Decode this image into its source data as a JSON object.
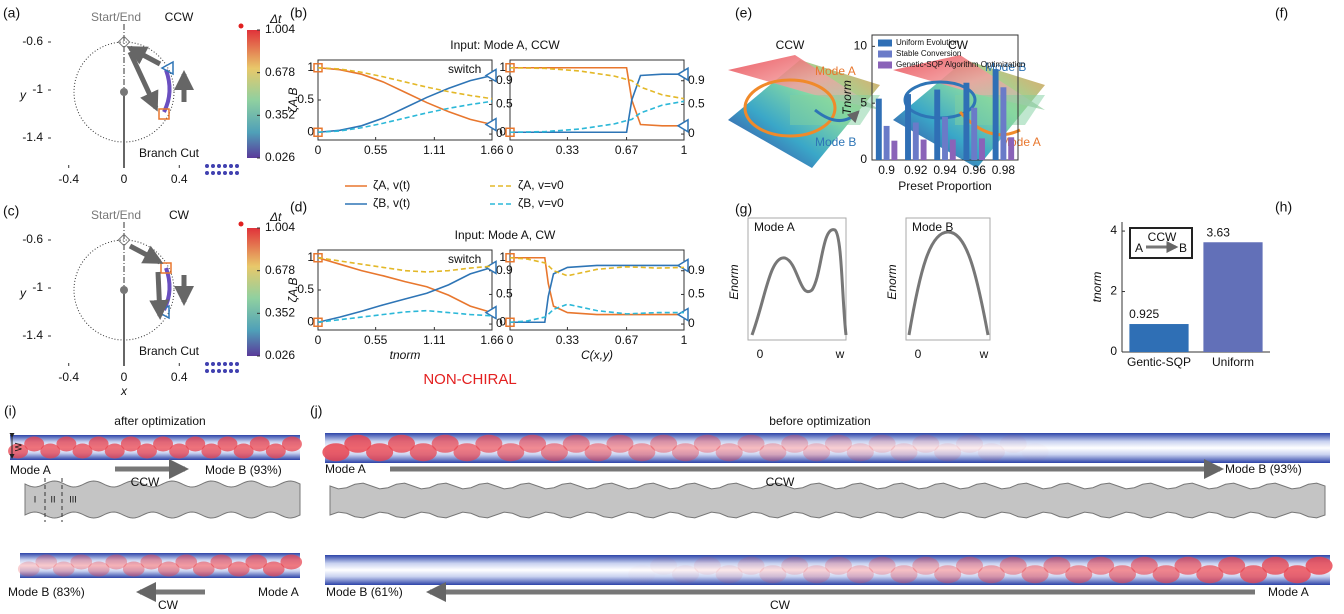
{
  "chart_data": [
    {
      "type": "trajectory",
      "label": "(a)",
      "start_label": "Start/End",
      "direction": "CCW",
      "cut_label": "Branch Cut",
      "ylabel": "y",
      "xlim": [
        -0.55,
        0.55
      ],
      "ylim": [
        -1.65,
        -0.45
      ],
      "xticks": [
        -0.4,
        0,
        0.4
      ],
      "yticks": [
        -0.6,
        -1,
        -1.4
      ],
      "colorbar": {
        "label": "Δt",
        "lim": [
          0.026,
          1.004
        ],
        "ticks": [
          1.004,
          0.678,
          0.352,
          0.026
        ]
      }
    },
    {
      "type": "trajectory",
      "label": "(c)",
      "start_label": "Start/End",
      "direction": "CW",
      "cut_label": "Branch Cut",
      "ylabel": "y",
      "xlabel": "x",
      "xlim": [
        -0.55,
        0.55
      ],
      "ylim": [
        -1.65,
        -0.45
      ],
      "xticks": [
        -0.4,
        0,
        0.4
      ],
      "yticks": [
        -0.6,
        -1,
        -1.4
      ],
      "colorbar": {
        "label": "Δt",
        "lim": [
          0.026,
          1.004
        ],
        "ticks": [
          1.004,
          0.678,
          0.352,
          0.026
        ]
      }
    },
    {
      "type": "line",
      "label": "(b)",
      "title": "Input: Mode A, CCW",
      "annotation": "switch",
      "ylabel": "ζA,B",
      "x": [
        0,
        0.2075,
        0.415,
        0.6225,
        0.83,
        1.0375,
        1.245,
        1.4525,
        1.66
      ],
      "xlim": [
        0,
        1.66
      ],
      "xticks": [
        0,
        0.55,
        1.11,
        1.66
      ],
      "ylim": [
        -0.12,
        1.12
      ],
      "yticks": [
        0,
        0.5,
        1
      ],
      "y2lim": [
        -0.1,
        1.25
      ],
      "y2ticks": [
        0,
        0.5,
        0.9
      ],
      "series": [
        {
          "name": "ζA, v(t)",
          "color": "#e8772e",
          "style": "solid",
          "values": [
            1,
            0.97,
            0.9,
            0.78,
            0.62,
            0.46,
            0.32,
            0.2,
            0.12
          ]
        },
        {
          "name": "ζB, v(t)",
          "color": "#2e75b6",
          "style": "solid",
          "values": [
            0,
            0.03,
            0.1,
            0.22,
            0.38,
            0.54,
            0.68,
            0.8,
            0.88
          ]
        },
        {
          "name": "ζA, v=v0",
          "color": "#e3b828",
          "style": "dashed",
          "values": [
            1,
            0.98,
            0.93,
            0.86,
            0.78,
            0.7,
            0.63,
            0.57,
            0.52
          ]
        },
        {
          "name": "ζB, v=v0",
          "color": "#2cb8d8",
          "style": "dashed",
          "values": [
            0,
            0.02,
            0.07,
            0.14,
            0.22,
            0.3,
            0.37,
            0.43,
            0.48
          ]
        }
      ]
    },
    {
      "type": "line",
      "x": [
        0,
        0.2,
        0.4,
        0.6,
        0.67,
        0.7,
        0.75,
        0.875,
        1
      ],
      "xlim": [
        0,
        1
      ],
      "xticks": [
        0,
        0.33,
        0.67,
        1
      ],
      "ylim": [
        -0.12,
        1.12
      ],
      "yticks": [
        0,
        1
      ],
      "y2lim": [
        -0.1,
        1.25
      ],
      "y2ticks": [
        0,
        0.5,
        0.9
      ],
      "series": [
        {
          "color": "#e8772e",
          "style": "solid",
          "values": [
            1,
            1,
            1,
            1,
            1,
            0.5,
            0.12,
            0.1,
            0.1
          ]
        },
        {
          "color": "#2e75b6",
          "style": "solid",
          "values": [
            0,
            0,
            0,
            0,
            0,
            0.5,
            0.88,
            0.9,
            0.9
          ]
        },
        {
          "color": "#e3b828",
          "style": "dashed",
          "values": [
            1,
            0.99,
            0.95,
            0.87,
            0.82,
            0.8,
            0.7,
            0.58,
            0.52
          ]
        },
        {
          "color": "#2cb8d8",
          "style": "dashed",
          "values": [
            0,
            0.01,
            0.05,
            0.13,
            0.18,
            0.2,
            0.3,
            0.42,
            0.48
          ]
        }
      ]
    },
    {
      "type": "line",
      "label": "(d)",
      "title": "Input: Mode A, CW",
      "annotation": "switch",
      "ylabel": "ζA,B",
      "xlabel": "tnorm",
      "x": [
        0,
        0.2075,
        0.415,
        0.6225,
        0.83,
        1.0375,
        1.245,
        1.4525,
        1.66
      ],
      "xlim": [
        0,
        1.66
      ],
      "xticks": [
        0,
        0.55,
        1.11,
        1.66
      ],
      "ylim": [
        -0.12,
        1.12
      ],
      "yticks": [
        0,
        0.5,
        1
      ],
      "y2lim": [
        -0.1,
        1.25
      ],
      "y2ticks": [
        0,
        0.5,
        0.9
      ],
      "series": [
        {
          "color": "#e8772e",
          "style": "solid",
          "values": [
            1,
            0.9,
            0.8,
            0.72,
            0.63,
            0.55,
            0.42,
            0.25,
            0.15
          ]
        },
        {
          "color": "#2e75b6",
          "style": "solid",
          "values": [
            0,
            0.08,
            0.17,
            0.27,
            0.36,
            0.45,
            0.58,
            0.75,
            0.85
          ]
        },
        {
          "color": "#e3b828",
          "style": "dashed",
          "values": [
            1,
            0.95,
            0.9,
            0.85,
            0.8,
            0.78,
            0.8,
            0.84,
            0.87
          ]
        },
        {
          "color": "#2cb8d8",
          "style": "dashed",
          "values": [
            0,
            0.04,
            0.08,
            0.12,
            0.16,
            0.18,
            0.15,
            0.12,
            0.1
          ]
        }
      ]
    },
    {
      "type": "line",
      "xlabel": "C(x,y)",
      "x": [
        0,
        0.1,
        0.2,
        0.22,
        0.25,
        0.33,
        0.5,
        0.67,
        0.85,
        1
      ],
      "xlim": [
        0,
        1
      ],
      "xticks": [
        0,
        0.33,
        0.67,
        1
      ],
      "ylim": [
        -0.12,
        1.12
      ],
      "yticks": [
        0,
        1
      ],
      "y2lim": [
        -0.1,
        1.25
      ],
      "y2ticks": [
        0,
        0.5,
        0.9
      ],
      "series": [
        {
          "color": "#e8772e",
          "style": "solid",
          "values": [
            1,
            1,
            1,
            0.6,
            0.25,
            0.15,
            0.12,
            0.12,
            0.12,
            0.12
          ]
        },
        {
          "color": "#2e75b6",
          "style": "solid",
          "values": [
            0,
            0,
            0,
            0.4,
            0.75,
            0.85,
            0.88,
            0.88,
            0.88,
            0.88
          ]
        },
        {
          "color": "#e3b828",
          "style": "dashed",
          "values": [
            1,
            0.98,
            0.92,
            0.88,
            0.8,
            0.72,
            0.82,
            0.86,
            0.84,
            0.85
          ]
        },
        {
          "color": "#2cb8d8",
          "style": "dashed",
          "values": [
            0,
            0.02,
            0.08,
            0.12,
            0.2,
            0.28,
            0.18,
            0.13,
            0.15,
            0.15
          ]
        }
      ]
    },
    {
      "type": "bar",
      "label": "(f)",
      "xlabel": "Preset Proportion",
      "ylabel": "Tnorm",
      "categories": [
        "0.9",
        "0.92",
        "0.94",
        "0.96",
        "0.98"
      ],
      "ylim": [
        0,
        11
      ],
      "yticks": [
        0,
        5,
        10
      ],
      "series": [
        {
          "name": "Uniform Evolution",
          "color": "#2f6fb5",
          "values": [
            5.4,
            5.8,
            6.2,
            6.8,
            8.0
          ]
        },
        {
          "name": "Stable Conversion",
          "color": "#6a7bc8",
          "values": [
            3.0,
            3.3,
            3.8,
            4.6,
            6.4
          ]
        },
        {
          "name": "Genetic-SQP Algorithm Optimization",
          "color": "#8a63b8",
          "values": [
            1.7,
            1.8,
            1.8,
            1.9,
            2.0
          ]
        }
      ]
    },
    {
      "type": "bar",
      "label": "(h)",
      "ylabel": "tnorm",
      "categories": [
        "Gentic-SQP",
        "Uniform"
      ],
      "values": [
        0.925,
        3.63
      ],
      "colors": [
        "#2f6fb5",
        "#6270b8"
      ],
      "ylim": [
        0,
        4.3
      ],
      "yticks": [
        0,
        2,
        4
      ],
      "inset": {
        "direction": "CCW",
        "from": "A",
        "to": "B"
      }
    }
  ],
  "panel_bd": {
    "non_chiral": "NON-CHIRAL"
  },
  "panel_e": {
    "label": "(e)",
    "left": {
      "title": "CCW",
      "mode_top": "Mode A",
      "mode_bottom": "Mode B"
    },
    "right": {
      "title": "CW",
      "mode_top": "Mode B",
      "mode_bottom": "Mode A"
    }
  },
  "panel_g": {
    "label": "(g)",
    "ylabel": "Enorm",
    "x_start": "0",
    "x_end": "w",
    "plots": [
      "Mode A",
      "Mode B"
    ]
  },
  "panel_i": {
    "label": "(i)",
    "title": "after optimization",
    "width": "W",
    "sections": [
      "I",
      "II",
      "III"
    ],
    "top": {
      "start": "Mode A",
      "direction": "CCW",
      "end": "Mode B (93%)"
    },
    "bottom": {
      "start": "Mode B (83%)",
      "direction": "CW",
      "end": "Mode A"
    }
  },
  "panel_j": {
    "label": "(j)",
    "title": "before optimization",
    "top": {
      "start": "Mode A",
      "direction": "CCW",
      "end": "Mode B (93%)"
    },
    "bottom": {
      "start": "Mode B (61%)",
      "direction": "CW",
      "end": "Mode A"
    }
  }
}
